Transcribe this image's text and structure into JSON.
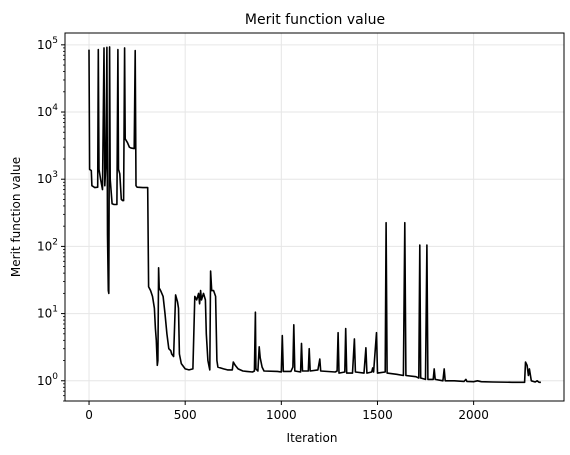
{
  "chart_data": {
    "type": "line",
    "title": "Merit function value",
    "xlabel": "Iteration",
    "ylabel": "Merit function value",
    "xlim": [
      -125,
      2470
    ],
    "ylim": [
      0.5,
      150000
    ],
    "yscale": "log",
    "grid": true,
    "x_ticks": [
      0,
      500,
      1000,
      1500,
      2000
    ],
    "y_ticks": [
      {
        "value": 1,
        "base": "10",
        "exp": "0"
      },
      {
        "value": 10,
        "base": "10",
        "exp": "1"
      },
      {
        "value": 100,
        "base": "10",
        "exp": "2"
      },
      {
        "value": 1000,
        "base": "10",
        "exp": "3"
      },
      {
        "value": 10000,
        "base": "10",
        "exp": "4"
      },
      {
        "value": 100000,
        "base": "10",
        "exp": "5"
      }
    ],
    "line_color": "#000000",
    "series": [
      {
        "values": [
          [
            0,
            85000
          ],
          [
            3,
            1400
          ],
          [
            12,
            1350
          ],
          [
            15,
            800
          ],
          [
            30,
            750
          ],
          [
            45,
            760
          ],
          [
            48,
            85000
          ],
          [
            52,
            1400
          ],
          [
            60,
            1000
          ],
          [
            70,
            700
          ],
          [
            78,
            90000
          ],
          [
            82,
            800
          ],
          [
            88,
            1800
          ],
          [
            93,
            92000
          ],
          [
            96,
            150
          ],
          [
            100,
            22
          ],
          [
            103,
            20
          ],
          [
            107,
            93000
          ],
          [
            110,
            1000
          ],
          [
            120,
            430
          ],
          [
            130,
            420
          ],
          [
            145,
            420
          ],
          [
            150,
            85000
          ],
          [
            153,
            1400
          ],
          [
            160,
            1200
          ],
          [
            168,
            500
          ],
          [
            175,
            480
          ],
          [
            180,
            480
          ],
          [
            185,
            90000
          ],
          [
            188,
            4000
          ],
          [
            200,
            3500
          ],
          [
            210,
            3000
          ],
          [
            220,
            2900
          ],
          [
            235,
            2850
          ],
          [
            240,
            82000
          ],
          [
            244,
            800
          ],
          [
            250,
            760
          ],
          [
            280,
            750
          ],
          [
            305,
            750
          ],
          [
            310,
            25
          ],
          [
            320,
            22
          ],
          [
            330,
            18
          ],
          [
            340,
            12
          ],
          [
            345,
            6
          ],
          [
            350,
            4
          ],
          [
            355,
            1.7
          ],
          [
            358,
            2
          ],
          [
            362,
            48
          ],
          [
            365,
            24
          ],
          [
            372,
            22
          ],
          [
            385,
            18
          ],
          [
            395,
            10
          ],
          [
            405,
            5
          ],
          [
            415,
            3
          ],
          [
            425,
            2.8
          ],
          [
            430,
            2.5
          ],
          [
            440,
            2.3
          ],
          [
            450,
            19
          ],
          [
            460,
            15
          ],
          [
            465,
            12
          ],
          [
            470,
            2.5
          ],
          [
            480,
            1.8
          ],
          [
            500,
            1.5
          ],
          [
            520,
            1.45
          ],
          [
            540,
            1.5
          ],
          [
            550,
            18
          ],
          [
            560,
            16
          ],
          [
            570,
            20
          ],
          [
            575,
            14
          ],
          [
            580,
            22
          ],
          [
            585,
            16
          ],
          [
            595,
            20
          ],
          [
            605,
            16
          ],
          [
            610,
            5
          ],
          [
            618,
            2
          ],
          [
            625,
            1.6
          ],
          [
            628,
            1.45
          ],
          [
            632,
            43
          ],
          [
            638,
            22
          ],
          [
            648,
            22
          ],
          [
            658,
            18
          ],
          [
            665,
            2
          ],
          [
            670,
            1.6
          ],
          [
            700,
            1.5
          ],
          [
            720,
            1.45
          ],
          [
            745,
            1.45
          ],
          [
            750,
            1.9
          ],
          [
            760,
            1.7
          ],
          [
            775,
            1.5
          ],
          [
            800,
            1.4
          ],
          [
            820,
            1.38
          ],
          [
            850,
            1.35
          ],
          [
            860,
            1.4
          ],
          [
            865,
            10.5
          ],
          [
            868,
            1.5
          ],
          [
            878,
            1.4
          ],
          [
            885,
            3.2
          ],
          [
            890,
            2.2
          ],
          [
            900,
            1.6
          ],
          [
            910,
            1.4
          ],
          [
            980,
            1.38
          ],
          [
            1000,
            1.35
          ],
          [
            1005,
            4.7
          ],
          [
            1010,
            1.38
          ],
          [
            1050,
            1.38
          ],
          [
            1060,
            1.6
          ],
          [
            1065,
            6.8
          ],
          [
            1070,
            1.4
          ],
          [
            1100,
            1.35
          ],
          [
            1105,
            3.6
          ],
          [
            1110,
            1.4
          ],
          [
            1140,
            1.4
          ],
          [
            1145,
            3
          ],
          [
            1150,
            1.4
          ],
          [
            1190,
            1.45
          ],
          [
            1200,
            2.1
          ],
          [
            1205,
            1.4
          ],
          [
            1280,
            1.35
          ],
          [
            1290,
            1.4
          ],
          [
            1295,
            5.2
          ],
          [
            1300,
            1.3
          ],
          [
            1330,
            1.35
          ],
          [
            1335,
            6
          ],
          [
            1340,
            1.3
          ],
          [
            1370,
            1.3
          ],
          [
            1380,
            4.2
          ],
          [
            1385,
            1.35
          ],
          [
            1430,
            1.3
          ],
          [
            1440,
            3.1
          ],
          [
            1445,
            1.3
          ],
          [
            1470,
            1.35
          ],
          [
            1475,
            1.55
          ],
          [
            1480,
            1.35
          ],
          [
            1495,
            5.2
          ],
          [
            1500,
            1.3
          ],
          [
            1540,
            1.35
          ],
          [
            1545,
            225
          ],
          [
            1550,
            1.3
          ],
          [
            1600,
            1.25
          ],
          [
            1635,
            1.2
          ],
          [
            1642,
            225
          ],
          [
            1648,
            1.2
          ],
          [
            1700,
            1.15
          ],
          [
            1715,
            1.1
          ],
          [
            1720,
            105
          ],
          [
            1725,
            1.1
          ],
          [
            1750,
            1.05
          ],
          [
            1757,
            105
          ],
          [
            1762,
            1.05
          ],
          [
            1790,
            1.05
          ],
          [
            1795,
            1.5
          ],
          [
            1800,
            1.05
          ],
          [
            1840,
            1.0
          ],
          [
            1847,
            1.5
          ],
          [
            1852,
            1.0
          ],
          [
            1900,
            1.0
          ],
          [
            1950,
            0.98
          ],
          [
            1960,
            1.05
          ],
          [
            1965,
            0.98
          ],
          [
            2000,
            0.97
          ],
          [
            2020,
            1.0
          ],
          [
            2040,
            0.97
          ],
          [
            2100,
            0.96
          ],
          [
            2200,
            0.95
          ],
          [
            2265,
            0.95
          ],
          [
            2270,
            1.9
          ],
          [
            2278,
            1.7
          ],
          [
            2285,
            1.2
          ],
          [
            2290,
            1.5
          ],
          [
            2300,
            1.0
          ],
          [
            2320,
            0.96
          ],
          [
            2330,
            1.0
          ],
          [
            2340,
            0.95
          ],
          [
            2350,
            0.95
          ]
        ]
      }
    ]
  }
}
